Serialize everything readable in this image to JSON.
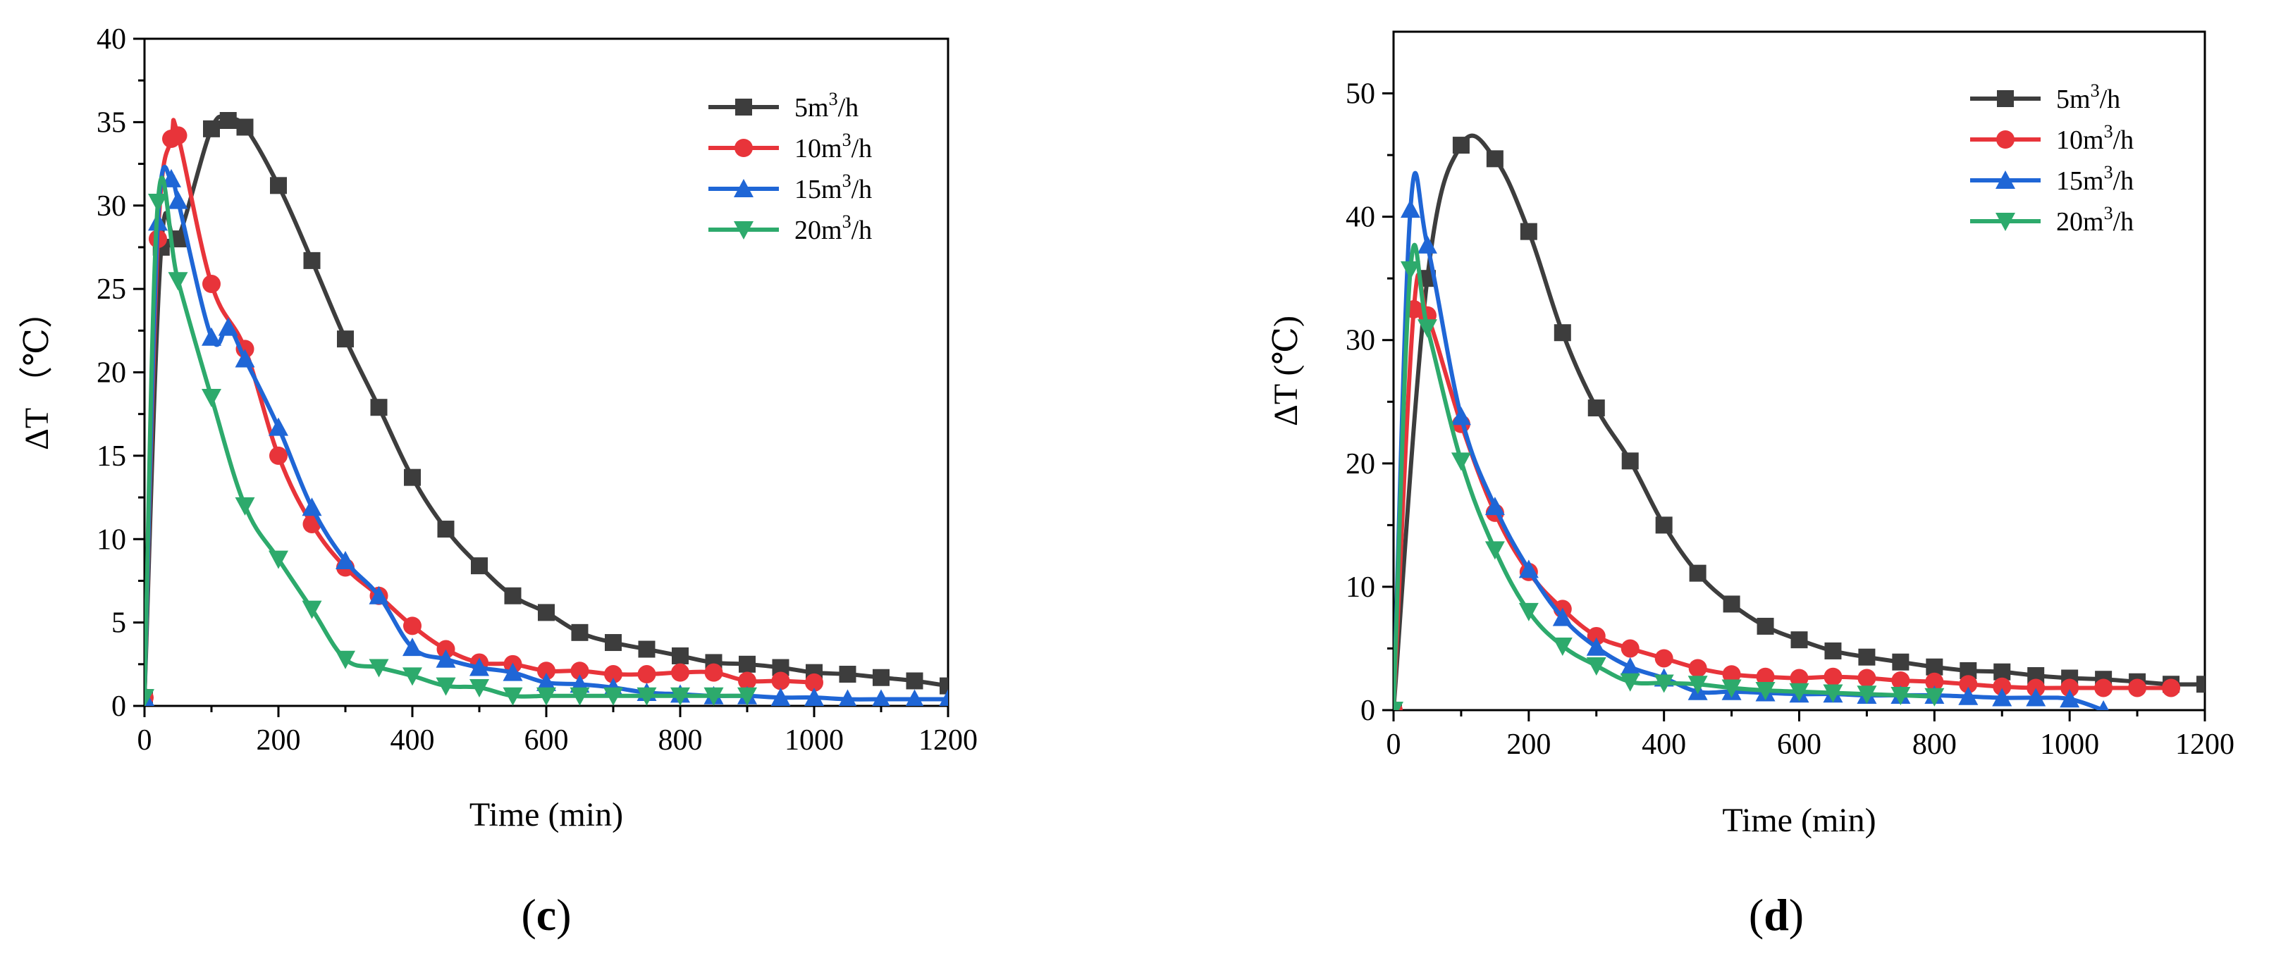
{
  "chart_data": [
    {
      "panel": "c",
      "panel_label": {
        "open": "(",
        "letter": "c",
        "close": ")"
      },
      "type": "line",
      "title": "",
      "xlabel": "Time (min)",
      "ylabel": "ΔT （℃）",
      "xlim": [
        0,
        1200
      ],
      "ylim": [
        0,
        40
      ],
      "xticks": [
        0,
        200,
        400,
        600,
        800,
        1000,
        1200
      ],
      "yticks": [
        0,
        5,
        10,
        15,
        20,
        25,
        30,
        35,
        40
      ],
      "legend_position": "top-right",
      "series": [
        {
          "name": "5m³/h",
          "legend_base": "5m",
          "legend_sup": "3",
          "legend_tail": "/h",
          "color": "#3d3d3d",
          "marker": "square",
          "x": [
            0,
            25,
            50,
            100,
            125,
            150,
            200,
            250,
            300,
            350,
            400,
            450,
            500,
            550,
            600,
            650,
            700,
            750,
            800,
            850,
            900,
            950,
            1000,
            1050,
            1100,
            1150,
            1200
          ],
          "y": [
            0.5,
            27.5,
            28,
            34.6,
            35.1,
            34.7,
            31.2,
            26.7,
            22,
            17.9,
            13.7,
            10.6,
            8.4,
            6.6,
            5.6,
            4.4,
            3.8,
            3.4,
            3,
            2.6,
            2.5,
            2.3,
            2,
            1.9,
            1.7,
            1.5,
            1.2
          ]
        },
        {
          "name": "10m³/h",
          "legend_base": "10m",
          "legend_sup": "3",
          "legend_tail": "/h",
          "color": "#e8343a",
          "marker": "circle",
          "x": [
            0,
            20,
            40,
            50,
            100,
            150,
            200,
            250,
            300,
            350,
            400,
            450,
            500,
            550,
            600,
            650,
            700,
            750,
            800,
            850,
            900,
            950,
            1000
          ],
          "y": [
            0.5,
            28,
            34,
            34.2,
            25.3,
            21.4,
            15,
            10.9,
            8.3,
            6.6,
            4.8,
            3.4,
            2.6,
            2.5,
            2.1,
            2.1,
            1.9,
            1.9,
            2,
            2,
            1.5,
            1.5,
            1.4
          ]
        },
        {
          "name": "15m³/h",
          "legend_base": "15m",
          "legend_sup": "3",
          "legend_tail": "/h",
          "color": "#1f66d6",
          "marker": "triangle-up",
          "x": [
            0,
            20,
            40,
            50,
            100,
            125,
            150,
            200,
            250,
            300,
            350,
            400,
            450,
            500,
            550,
            600,
            650,
            700,
            750,
            800,
            850,
            900,
            950,
            1000,
            1050,
            1100,
            1150,
            1200
          ],
          "y": [
            0.5,
            29,
            31.6,
            30.3,
            22.1,
            22.7,
            20.8,
            16.7,
            11.9,
            8.7,
            6.6,
            3.5,
            2.8,
            2.3,
            2,
            1.4,
            1.3,
            1.1,
            0.8,
            0.7,
            0.6,
            0.6,
            0.5,
            0.5,
            0.4,
            0.4,
            0.4,
            0.4
          ]
        },
        {
          "name": "20m³/h",
          "legend_base": "20m",
          "legend_sup": "3",
          "legend_tail": "/h",
          "color": "#2daa6c",
          "marker": "triangle-down",
          "x": [
            0,
            20,
            50,
            100,
            150,
            200,
            250,
            300,
            350,
            400,
            450,
            500,
            550,
            600,
            650,
            700,
            750,
            800,
            850,
            900
          ],
          "y": [
            0.5,
            30.2,
            25.5,
            18.5,
            12,
            8.8,
            5.8,
            2.8,
            2.3,
            1.8,
            1.2,
            1.1,
            0.6,
            0.6,
            0.6,
            0.6,
            0.6,
            0.6,
            0.6,
            0.6
          ]
        }
      ]
    },
    {
      "panel": "d",
      "panel_label": {
        "open": "(",
        "letter": "d",
        "close": ")"
      },
      "type": "line",
      "title": "",
      "xlabel": "Time (min)",
      "ylabel": "ΔT (℃)",
      "xlim": [
        0,
        1200
      ],
      "ylim": [
        0,
        55
      ],
      "xticks": [
        0,
        200,
        400,
        600,
        800,
        1000,
        1200
      ],
      "yticks": [
        0,
        10,
        20,
        30,
        40,
        50
      ],
      "legend_position": "top-right",
      "series": [
        {
          "name": "5m³/h",
          "legend_base": "5m",
          "legend_sup": "3",
          "legend_tail": "/h",
          "color": "#3d3d3d",
          "marker": "square",
          "x": [
            0,
            50,
            100,
            150,
            200,
            250,
            300,
            350,
            400,
            450,
            500,
            550,
            600,
            650,
            700,
            750,
            800,
            850,
            900,
            950,
            1000,
            1050,
            1100,
            1150,
            1200
          ],
          "y": [
            0,
            35,
            45.8,
            44.7,
            38.8,
            30.6,
            24.5,
            20.2,
            15,
            11.1,
            8.6,
            6.8,
            5.7,
            4.8,
            4.3,
            3.9,
            3.5,
            3.2,
            3.1,
            2.8,
            2.6,
            2.5,
            2.3,
            2.1,
            2.1
          ]
        },
        {
          "name": "10m³/h",
          "legend_base": "10m",
          "legend_sup": "3",
          "legend_tail": "/h",
          "color": "#e8343a",
          "marker": "circle",
          "x": [
            0,
            30,
            50,
            100,
            150,
            200,
            250,
            300,
            350,
            400,
            450,
            500,
            550,
            600,
            650,
            700,
            750,
            800,
            850,
            900,
            950,
            1000,
            1050,
            1100,
            1150
          ],
          "y": [
            0,
            32.5,
            32,
            23.2,
            16,
            11.2,
            8.2,
            6,
            5,
            4.2,
            3.4,
            2.9,
            2.7,
            2.6,
            2.7,
            2.6,
            2.4,
            2.3,
            2.1,
            1.9,
            1.8,
            1.8,
            1.8,
            1.8,
            1.8
          ]
        },
        {
          "name": "15m³/h",
          "legend_base": "15m",
          "legend_sup": "3",
          "legend_tail": "/h",
          "color": "#1f66d6",
          "marker": "triangle-up",
          "x": [
            0,
            25,
            50,
            100,
            150,
            200,
            250,
            300,
            350,
            400,
            450,
            500,
            550,
            600,
            650,
            700,
            750,
            800,
            850,
            900,
            950,
            1000,
            1050
          ],
          "y": [
            0,
            40.6,
            37.7,
            23.8,
            16.5,
            11.4,
            7.5,
            5.1,
            3.5,
            2.6,
            1.5,
            1.5,
            1.4,
            1.3,
            1.3,
            1.2,
            1.2,
            1.2,
            1.1,
            1.0,
            1.0,
            0.9,
            0
          ]
        },
        {
          "name": "20m³/h",
          "legend_base": "20m",
          "legend_sup": "3",
          "legend_tail": "/h",
          "color": "#2daa6c",
          "marker": "triangle-down",
          "x": [
            0,
            25,
            50,
            100,
            150,
            200,
            250,
            300,
            350,
            400,
            450,
            500,
            550,
            600,
            650,
            700,
            750,
            800
          ],
          "y": [
            0,
            35.7,
            31,
            20.2,
            13,
            8,
            5.2,
            3.6,
            2.3,
            2.2,
            2.1,
            1.8,
            1.6,
            1.5,
            1.4,
            1.3,
            1.2,
            1.1
          ]
        }
      ]
    }
  ]
}
